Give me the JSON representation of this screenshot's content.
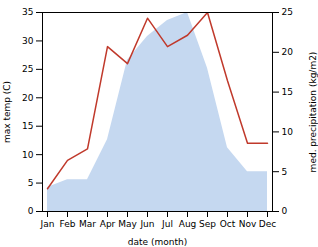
{
  "chart_data": {
    "type": "line",
    "categories": [
      "Jan",
      "Feb",
      "Mar",
      "Apr",
      "May",
      "Jun",
      "Jul",
      "Aug",
      "Sep",
      "Oct",
      "Nov",
      "Dec"
    ],
    "series": [
      {
        "type": "area",
        "axis": "y2",
        "color": "#c5d8f0",
        "values": [
          3,
          4,
          4,
          9,
          19,
          22,
          24,
          25,
          18,
          8,
          5,
          5
        ]
      },
      {
        "type": "line",
        "color": "#c0392b",
        "values": [
          4,
          9,
          11,
          29,
          26,
          34,
          29,
          31,
          35,
          23,
          12,
          12
        ]
      }
    ],
    "xlabel": "date (month)",
    "ylabel": "max temp (C)",
    "y2label": "med. precipitation (kg/m2)",
    "ylim": [
      0,
      35
    ],
    "yticks": [
      0,
      5,
      10,
      15,
      20,
      25,
      30,
      35
    ],
    "y2lim": [
      0,
      25
    ],
    "y2ticks": [
      0,
      5,
      10,
      15,
      20,
      25
    ],
    "grid": false
  }
}
